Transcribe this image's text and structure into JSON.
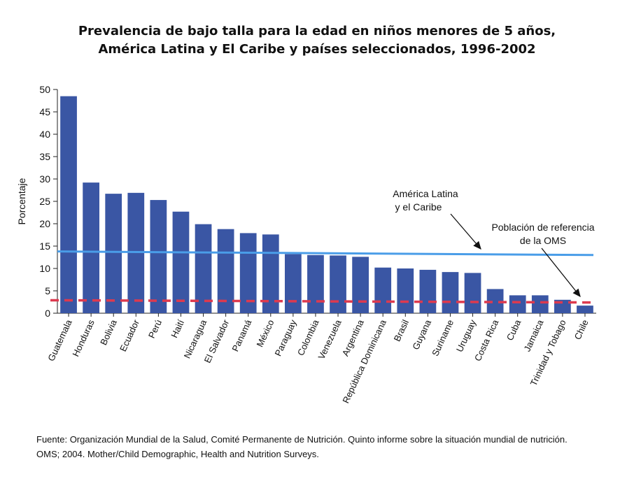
{
  "chart_data": {
    "type": "bar",
    "title_line1": "Prevalencia de bajo talla para la edad en niños menores de 5 años,",
    "title_line2": "América Latina y El Caribe y países seleccionados, 1996-2002",
    "ylabel": "Porcentaje",
    "xlabel": "",
    "ylim": [
      0,
      50
    ],
    "yticks": [
      "0",
      "5",
      "10",
      "15",
      "20",
      "25",
      "30",
      "35",
      "40",
      "45",
      "50"
    ],
    "categories": [
      "Guatemala",
      "Honduras",
      "Bolivia",
      "Ecuador",
      "Perú",
      "Haití",
      "Nicaragua",
      "El Salvador",
      "Panamá",
      "México",
      "Paraguay",
      "Colombia",
      "Venezuela",
      "Argentina",
      "República Dominicana",
      "Brasil",
      "Guyana",
      "Suriname",
      "Uruguay",
      "Costa Rica",
      "Cuba",
      "Jamaica",
      "Trinidad y Tobago",
      "Chile"
    ],
    "values": [
      48.5,
      29.2,
      26.7,
      26.9,
      25.3,
      22.7,
      19.9,
      18.8,
      17.9,
      17.6,
      13.2,
      13.0,
      12.9,
      12.6,
      10.2,
      10.0,
      9.7,
      9.2,
      9.0,
      5.4,
      4.0,
      4.0,
      3.0,
      1.7
    ],
    "bar_color": "#3a56a4",
    "reference_lines": [
      {
        "name": "América Latina\ny el Caribe",
        "start": 13.8,
        "end": 13.0,
        "color": "#4a9de8",
        "style": "solid"
      },
      {
        "name": "Población de referencia\nde la OMS",
        "start": 2.9,
        "end": 2.4,
        "color": "#dd3a4f",
        "style": "dashed"
      }
    ],
    "annotations": [
      {
        "text_line1": "América Latina",
        "text_line2": "y el Caribe"
      },
      {
        "text_line1": "Población de referencia",
        "text_line2": "de la OMS"
      }
    ],
    "grid": false
  },
  "source": {
    "line1": "Fuente: Organización Mundial de la Salud, Comité Permanente de Nutrición. Quinto informe sobre la situación mundial de nutrición.",
    "line2": "OMS; 2004. Mother/Child Demographic, Health and Nutrition Surveys."
  }
}
